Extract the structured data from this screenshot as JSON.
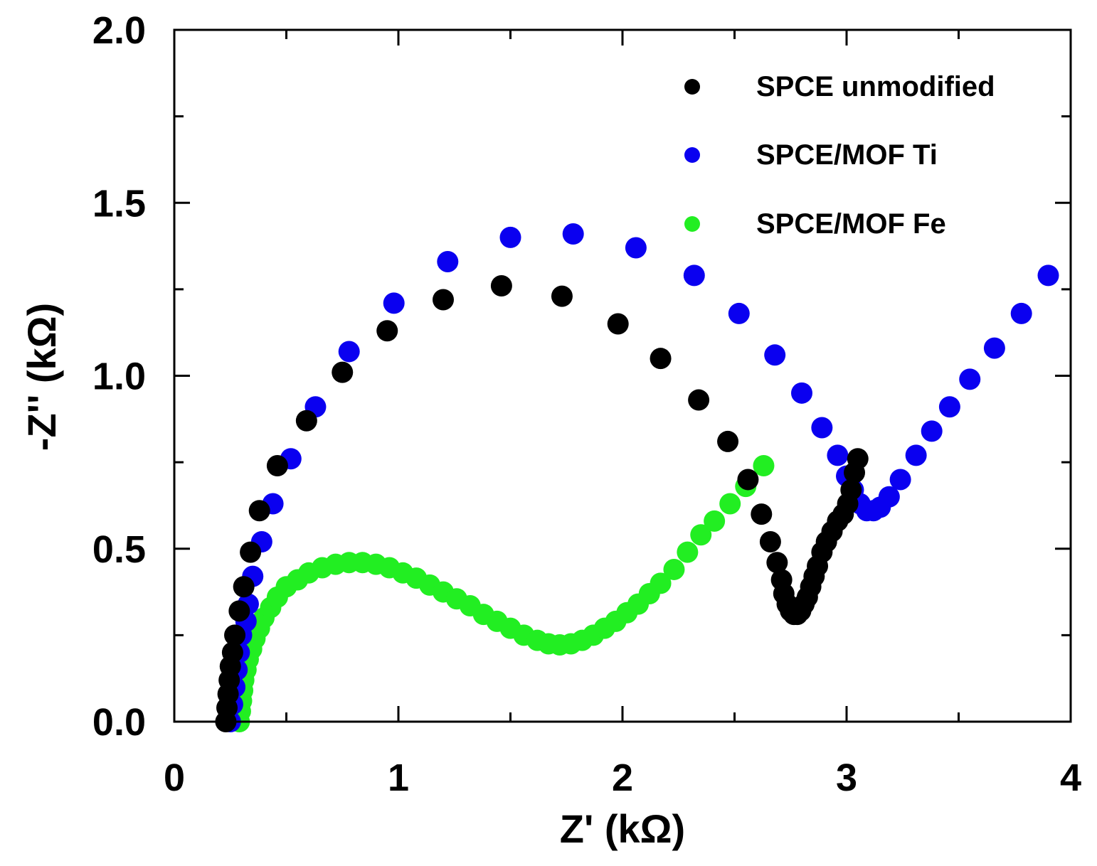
{
  "chart_data": {
    "type": "scatter",
    "title": "",
    "xlabel": "Z' (kΩ)",
    "ylabel": "-Z'' (kΩ)",
    "xlim": [
      0,
      4
    ],
    "ylim": [
      0,
      2
    ],
    "x_tick_labels": [
      "0",
      "1",
      "2",
      "3",
      "4"
    ],
    "y_tick_labels": [
      "0.0",
      "0.5",
      "1.0",
      "1.5",
      "2.0"
    ],
    "legend_position": "top-right",
    "grid": false,
    "series": [
      {
        "name": "SPCE unmodified",
        "color": "#000000",
        "points": [
          [
            0.23,
            0.0
          ],
          [
            0.235,
            0.04
          ],
          [
            0.24,
            0.08
          ],
          [
            0.245,
            0.12
          ],
          [
            0.25,
            0.16
          ],
          [
            0.26,
            0.2
          ],
          [
            0.27,
            0.25
          ],
          [
            0.29,
            0.32
          ],
          [
            0.31,
            0.39
          ],
          [
            0.34,
            0.49
          ],
          [
            0.38,
            0.61
          ],
          [
            0.46,
            0.74
          ],
          [
            0.59,
            0.87
          ],
          [
            0.75,
            1.01
          ],
          [
            0.95,
            1.13
          ],
          [
            1.2,
            1.22
          ],
          [
            1.46,
            1.26
          ],
          [
            1.73,
            1.23
          ],
          [
            1.98,
            1.15
          ],
          [
            2.17,
            1.05
          ],
          [
            2.34,
            0.93
          ],
          [
            2.47,
            0.81
          ],
          [
            2.56,
            0.7
          ],
          [
            2.62,
            0.6
          ],
          [
            2.66,
            0.52
          ],
          [
            2.69,
            0.46
          ],
          [
            2.71,
            0.41
          ],
          [
            2.72,
            0.37
          ],
          [
            2.735,
            0.34
          ],
          [
            2.75,
            0.32
          ],
          [
            2.765,
            0.31
          ],
          [
            2.78,
            0.31
          ],
          [
            2.795,
            0.32
          ],
          [
            2.81,
            0.34
          ],
          [
            2.825,
            0.36
          ],
          [
            2.84,
            0.39
          ],
          [
            2.855,
            0.42
          ],
          [
            2.87,
            0.45
          ],
          [
            2.89,
            0.49
          ],
          [
            2.91,
            0.52
          ],
          [
            2.935,
            0.55
          ],
          [
            2.96,
            0.58
          ],
          [
            2.985,
            0.6
          ],
          [
            3.005,
            0.63
          ],
          [
            3.02,
            0.67
          ],
          [
            3.035,
            0.72
          ],
          [
            3.05,
            0.76
          ]
        ]
      },
      {
        "name": "SPCE/MOF Ti",
        "color": "#0a00f0",
        "points": [
          [
            0.25,
            0.0
          ],
          [
            0.26,
            0.05
          ],
          [
            0.27,
            0.1
          ],
          [
            0.28,
            0.15
          ],
          [
            0.29,
            0.2
          ],
          [
            0.3,
            0.25
          ],
          [
            0.32,
            0.29
          ],
          [
            0.33,
            0.34
          ],
          [
            0.35,
            0.42
          ],
          [
            0.39,
            0.52
          ],
          [
            0.44,
            0.63
          ],
          [
            0.52,
            0.76
          ],
          [
            0.63,
            0.91
          ],
          [
            0.78,
            1.07
          ],
          [
            0.98,
            1.21
          ],
          [
            1.22,
            1.33
          ],
          [
            1.5,
            1.4
          ],
          [
            1.78,
            1.41
          ],
          [
            2.06,
            1.37
          ],
          [
            2.32,
            1.29
          ],
          [
            2.52,
            1.18
          ],
          [
            2.68,
            1.06
          ],
          [
            2.8,
            0.95
          ],
          [
            2.89,
            0.85
          ],
          [
            2.96,
            0.77
          ],
          [
            3.0,
            0.71
          ],
          [
            3.03,
            0.67
          ],
          [
            3.06,
            0.63
          ],
          [
            3.09,
            0.61
          ],
          [
            3.12,
            0.61
          ],
          [
            3.15,
            0.62
          ],
          [
            3.19,
            0.65
          ],
          [
            3.24,
            0.7
          ],
          [
            3.31,
            0.77
          ],
          [
            3.38,
            0.84
          ],
          [
            3.46,
            0.91
          ],
          [
            3.55,
            0.99
          ],
          [
            3.66,
            1.08
          ],
          [
            3.78,
            1.18
          ],
          [
            3.9,
            1.29
          ]
        ]
      },
      {
        "name": "SPCE/MOF Fe",
        "color": "#22ee22",
        "points": [
          [
            0.29,
            0.0
          ],
          [
            0.295,
            0.03
          ],
          [
            0.3,
            0.06
          ],
          [
            0.305,
            0.09
          ],
          [
            0.31,
            0.12
          ],
          [
            0.32,
            0.15
          ],
          [
            0.33,
            0.18
          ],
          [
            0.345,
            0.21
          ],
          [
            0.36,
            0.24
          ],
          [
            0.38,
            0.27
          ],
          [
            0.4,
            0.3
          ],
          [
            0.43,
            0.33
          ],
          [
            0.46,
            0.36
          ],
          [
            0.5,
            0.39
          ],
          [
            0.55,
            0.41
          ],
          [
            0.6,
            0.43
          ],
          [
            0.66,
            0.445
          ],
          [
            0.72,
            0.455
          ],
          [
            0.78,
            0.46
          ],
          [
            0.84,
            0.46
          ],
          [
            0.9,
            0.455
          ],
          [
            0.96,
            0.445
          ],
          [
            1.02,
            0.43
          ],
          [
            1.08,
            0.415
          ],
          [
            1.14,
            0.395
          ],
          [
            1.2,
            0.375
          ],
          [
            1.26,
            0.355
          ],
          [
            1.32,
            0.335
          ],
          [
            1.38,
            0.31
          ],
          [
            1.44,
            0.29
          ],
          [
            1.5,
            0.27
          ],
          [
            1.56,
            0.25
          ],
          [
            1.62,
            0.235
          ],
          [
            1.67,
            0.225
          ],
          [
            1.72,
            0.222
          ],
          [
            1.77,
            0.225
          ],
          [
            1.82,
            0.235
          ],
          [
            1.87,
            0.25
          ],
          [
            1.92,
            0.27
          ],
          [
            1.97,
            0.29
          ],
          [
            2.02,
            0.315
          ],
          [
            2.07,
            0.34
          ],
          [
            2.12,
            0.37
          ],
          [
            2.17,
            0.4
          ],
          [
            2.23,
            0.44
          ],
          [
            2.29,
            0.49
          ],
          [
            2.35,
            0.54
          ],
          [
            2.41,
            0.58
          ],
          [
            2.48,
            0.63
          ],
          [
            2.55,
            0.68
          ],
          [
            2.63,
            0.74
          ]
        ]
      }
    ]
  }
}
